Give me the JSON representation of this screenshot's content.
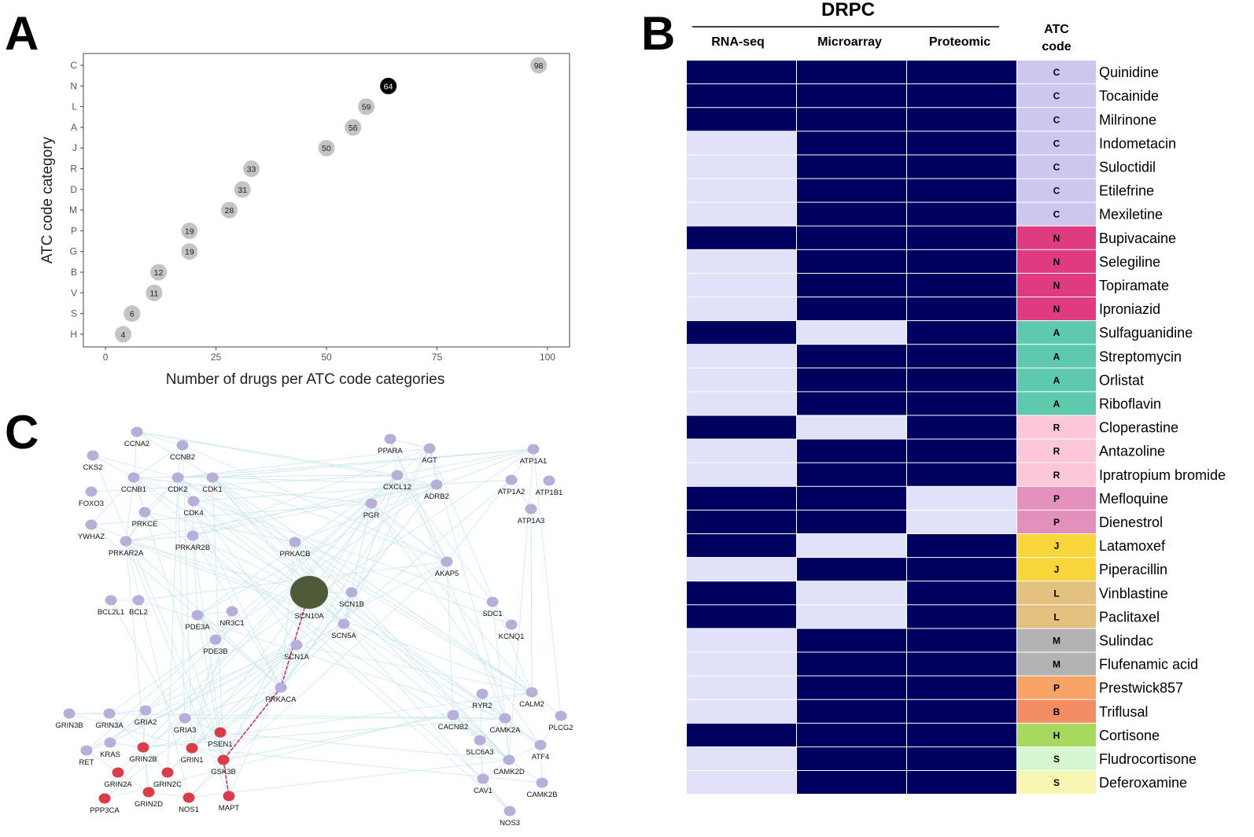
{
  "panels": {
    "a": "A",
    "b": "B",
    "c": "C"
  },
  "colors": {
    "bubble": "#c4c4c4",
    "bubble_highlight": "#000000",
    "dark_cell": "#00005f",
    "light_cell": "#e1e1fa",
    "highlight_text": "#e8141c",
    "node": "#b6b0d8",
    "node_red": "#d93c4a",
    "node_big": "#4f5a39",
    "edge": "#cfe9ee",
    "edge_red": "#c8327a"
  },
  "chart_data": [
    {
      "type": "scatter",
      "title": "",
      "xlabel": "Number of drugs per ATC code categories",
      "ylabel": "ATC code category",
      "xlim": [
        -5,
        105
      ],
      "xticks": [
        "0",
        "25",
        "50",
        "75",
        "100"
      ],
      "categories": [
        "C",
        "N",
        "L",
        "A",
        "J",
        "R",
        "D",
        "M",
        "P",
        "G",
        "B",
        "V",
        "S",
        "H"
      ],
      "values": [
        98,
        64,
        59,
        56,
        50,
        33,
        31,
        28,
        19,
        19,
        12,
        11,
        6,
        4
      ],
      "labels": [
        "98",
        "64",
        "59",
        "56",
        "50",
        "33",
        "31",
        "28",
        "19",
        "19",
        "12",
        "11",
        "6",
        "4"
      ],
      "highlight": "N"
    },
    {
      "type": "heatmap",
      "title": "DRPC",
      "columns": [
        "RNA-seq",
        "Microarray",
        "Proteomic"
      ],
      "atc_header": [
        "ATC",
        "code"
      ],
      "highlight_drug": "Bupivacaine",
      "atc_colors": {
        "C": "#cdc7f0",
        "N": "#df3b80",
        "A": "#5fc9ae",
        "R": "#fcc8d8",
        "P": "#e390bc",
        "J": "#f7d53b",
        "L": "#e2c17f",
        "M": "#b3b3b3",
        "P2": "#f8a466",
        "B": "#f38d63",
        "H": "#a7d860",
        "S": "#d6f7cf",
        "S2": "#f8f6b3"
      },
      "rows": [
        {
          "drug": "Quinidine",
          "atc": "C",
          "atc_key": "C",
          "cells": [
            1,
            1,
            1
          ]
        },
        {
          "drug": "Tocainide",
          "atc": "C",
          "atc_key": "C",
          "cells": [
            1,
            1,
            1
          ]
        },
        {
          "drug": "Milrinone",
          "atc": "C",
          "atc_key": "C",
          "cells": [
            1,
            1,
            1
          ]
        },
        {
          "drug": "Indometacin",
          "atc": "C",
          "atc_key": "C",
          "cells": [
            0,
            1,
            1
          ]
        },
        {
          "drug": "Suloctidil",
          "atc": "C",
          "atc_key": "C",
          "cells": [
            0,
            1,
            1
          ]
        },
        {
          "drug": "Etilefrine",
          "atc": "C",
          "atc_key": "C",
          "cells": [
            0,
            1,
            1
          ]
        },
        {
          "drug": "Mexiletine",
          "atc": "C",
          "atc_key": "C",
          "cells": [
            0,
            1,
            1
          ]
        },
        {
          "drug": "Bupivacaine",
          "atc": "N",
          "atc_key": "N",
          "cells": [
            1,
            1,
            1
          ]
        },
        {
          "drug": "Selegiline",
          "atc": "N",
          "atc_key": "N",
          "cells": [
            0,
            1,
            1
          ]
        },
        {
          "drug": "Topiramate",
          "atc": "N",
          "atc_key": "N",
          "cells": [
            0,
            1,
            1
          ]
        },
        {
          "drug": "Iproniazid",
          "atc": "N",
          "atc_key": "N",
          "cells": [
            0,
            1,
            1
          ]
        },
        {
          "drug": "Sulfaguanidine",
          "atc": "A",
          "atc_key": "A",
          "cells": [
            1,
            0,
            1
          ]
        },
        {
          "drug": "Streptomycin",
          "atc": "A",
          "atc_key": "A",
          "cells": [
            0,
            1,
            1
          ]
        },
        {
          "drug": "Orlistat",
          "atc": "A",
          "atc_key": "A",
          "cells": [
            0,
            1,
            1
          ]
        },
        {
          "drug": "Riboflavin",
          "atc": "A",
          "atc_key": "A",
          "cells": [
            0,
            1,
            1
          ]
        },
        {
          "drug": "Cloperastine",
          "atc": "R",
          "atc_key": "R",
          "cells": [
            1,
            0,
            1
          ]
        },
        {
          "drug": "Antazoline",
          "atc": "R",
          "atc_key": "R",
          "cells": [
            0,
            1,
            1
          ]
        },
        {
          "drug": "Ipratropium bromide",
          "atc": "R",
          "atc_key": "R",
          "cells": [
            0,
            1,
            1
          ]
        },
        {
          "drug": "Mefloquine",
          "atc": "P",
          "atc_key": "P",
          "cells": [
            1,
            1,
            0
          ]
        },
        {
          "drug": "Dienestrol",
          "atc": "P",
          "atc_key": "P",
          "cells": [
            1,
            1,
            0
          ]
        },
        {
          "drug": "Latamoxef",
          "atc": "J",
          "atc_key": "J",
          "cells": [
            1,
            0,
            1
          ]
        },
        {
          "drug": "Piperacillin",
          "atc": "J",
          "atc_key": "J",
          "cells": [
            0,
            1,
            1
          ]
        },
        {
          "drug": "Vinblastine",
          "atc": "L",
          "atc_key": "L",
          "cells": [
            1,
            0,
            1
          ]
        },
        {
          "drug": "Paclitaxel",
          "atc": "L",
          "atc_key": "L",
          "cells": [
            1,
            0,
            1
          ]
        },
        {
          "drug": "Sulindac",
          "atc": "M",
          "atc_key": "M",
          "cells": [
            0,
            1,
            1
          ]
        },
        {
          "drug": "Flufenamic acid",
          "atc": "M",
          "atc_key": "M",
          "cells": [
            0,
            1,
            1
          ]
        },
        {
          "drug": "Prestwick857",
          "atc": "P",
          "atc_key": "P2",
          "cells": [
            0,
            1,
            1
          ]
        },
        {
          "drug": "Triflusal",
          "atc": "B",
          "atc_key": "B",
          "cells": [
            0,
            1,
            1
          ]
        },
        {
          "drug": "Cortisone",
          "atc": "H",
          "atc_key": "H",
          "cells": [
            1,
            1,
            1
          ]
        },
        {
          "drug": "Fludrocortisone",
          "atc": "S",
          "atc_key": "S",
          "cells": [
            0,
            1,
            1
          ]
        },
        {
          "drug": "Deferoxamine",
          "atc": "S",
          "atc_key": "S2",
          "cells": [
            0,
            1,
            1
          ]
        }
      ]
    }
  ],
  "network": {
    "nodes": [
      {
        "name": "CCNA2",
        "kind": "normal"
      },
      {
        "name": "CCNB2",
        "kind": "normal"
      },
      {
        "name": "CKS2",
        "kind": "normal"
      },
      {
        "name": "CCNB1",
        "kind": "normal"
      },
      {
        "name": "CDK2",
        "kind": "normal"
      },
      {
        "name": "CDK1",
        "kind": "normal"
      },
      {
        "name": "FOXO3",
        "kind": "normal"
      },
      {
        "name": "PRKCE",
        "kind": "normal"
      },
      {
        "name": "CDK4",
        "kind": "normal"
      },
      {
        "name": "YWHAZ",
        "kind": "normal"
      },
      {
        "name": "PRKAR2A",
        "kind": "normal"
      },
      {
        "name": "PRKAR2B",
        "kind": "normal"
      },
      {
        "name": "PRKACB",
        "kind": "normal"
      },
      {
        "name": "PPARA",
        "kind": "normal"
      },
      {
        "name": "AGT",
        "kind": "normal"
      },
      {
        "name": "ATP1A1",
        "kind": "normal"
      },
      {
        "name": "CXCL12",
        "kind": "normal"
      },
      {
        "name": "ADRB2",
        "kind": "normal"
      },
      {
        "name": "ATP1A2",
        "kind": "normal"
      },
      {
        "name": "ATP1B1",
        "kind": "normal"
      },
      {
        "name": "PGR",
        "kind": "normal"
      },
      {
        "name": "ATP1A3",
        "kind": "normal"
      },
      {
        "name": "AKAP5",
        "kind": "normal"
      },
      {
        "name": "BCL2L1",
        "kind": "normal"
      },
      {
        "name": "BCL2",
        "kind": "normal"
      },
      {
        "name": "PDE3A",
        "kind": "normal"
      },
      {
        "name": "NR3C1",
        "kind": "normal"
      },
      {
        "name": "SCN10A",
        "kind": "big"
      },
      {
        "name": "SCN1B",
        "kind": "normal"
      },
      {
        "name": "SDC1",
        "kind": "normal"
      },
      {
        "name": "SCN5A",
        "kind": "normal"
      },
      {
        "name": "KCNQ1",
        "kind": "normal"
      },
      {
        "name": "PDE3B",
        "kind": "normal"
      },
      {
        "name": "SCN1A",
        "kind": "normal"
      },
      {
        "name": "PRKACA",
        "kind": "normal"
      },
      {
        "name": "RYR2",
        "kind": "normal"
      },
      {
        "name": "CALM2",
        "kind": "normal"
      },
      {
        "name": "GRIN3B",
        "kind": "normal"
      },
      {
        "name": "GRIN3A",
        "kind": "normal"
      },
      {
        "name": "GRIA2",
        "kind": "normal"
      },
      {
        "name": "GRIA3",
        "kind": "normal"
      },
      {
        "name": "PSEN1",
        "kind": "red"
      },
      {
        "name": "CACNB2",
        "kind": "normal"
      },
      {
        "name": "CAMK2A",
        "kind": "normal"
      },
      {
        "name": "PLCG2",
        "kind": "normal"
      },
      {
        "name": "RET",
        "kind": "normal"
      },
      {
        "name": "KRAS",
        "kind": "normal"
      },
      {
        "name": "GRIN2B",
        "kind": "red"
      },
      {
        "name": "GRIN1",
        "kind": "red"
      },
      {
        "name": "GSK3B",
        "kind": "red"
      },
      {
        "name": "SLC6A3",
        "kind": "normal"
      },
      {
        "name": "ATF4",
        "kind": "normal"
      },
      {
        "name": "GRIN2A",
        "kind": "red"
      },
      {
        "name": "GRIN2C",
        "kind": "red"
      },
      {
        "name": "CAMK2D",
        "kind": "normal"
      },
      {
        "name": "CAV1",
        "kind": "normal"
      },
      {
        "name": "CAMK2B",
        "kind": "normal"
      },
      {
        "name": "PPP3CA",
        "kind": "red"
      },
      {
        "name": "GRIN2D",
        "kind": "red"
      },
      {
        "name": "NOS1",
        "kind": "red"
      },
      {
        "name": "MAPT",
        "kind": "red"
      },
      {
        "name": "NOS3",
        "kind": "normal"
      }
    ],
    "red_path": [
      "SCN10A",
      "PRKACA",
      "GSK3B",
      "MAPT"
    ]
  }
}
